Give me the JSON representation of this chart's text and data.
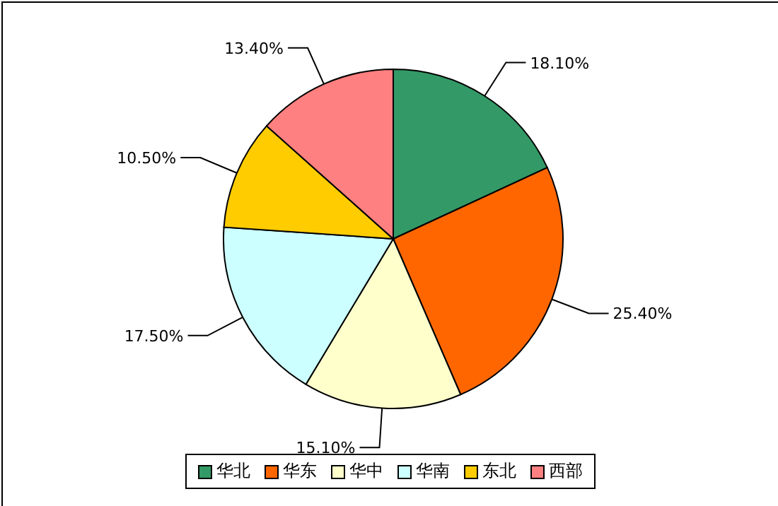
{
  "chart_data": {
    "type": "pie",
    "categories": [
      "华北",
      "华东",
      "华中",
      "华南",
      "东北",
      "西部"
    ],
    "values": [
      18.1,
      25.4,
      15.1,
      17.5,
      10.5,
      13.4
    ],
    "value_labels": [
      "18.10%",
      "25.40%",
      "15.10%",
      "17.50%",
      "10.50%",
      "13.40%"
    ],
    "colors": [
      "#339966",
      "#ff6600",
      "#ffffcc",
      "#ccffff",
      "#ffcc00",
      "#ff8080"
    ],
    "legend": "bottom"
  }
}
